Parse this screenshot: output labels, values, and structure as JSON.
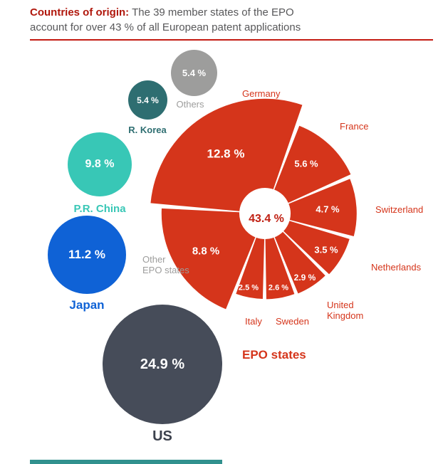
{
  "header": {
    "title_bold": "Countries of origin:",
    "title_text": "The 39 member states of the EPO account for over 43 % of all European patent applications"
  },
  "chart_data": {
    "type": "pie",
    "title": "Countries of origin",
    "subtitle": "The 39 member states of the EPO account for over 43 % of all European patent applications",
    "units": "% of all European patent applications",
    "bubbles": [
      {
        "label": "Others",
        "value": 5.4,
        "display": "5.4 %",
        "color": "#9d9d9c",
        "label_color": "#9d9d9c"
      },
      {
        "label": "R. Korea",
        "value": 5.4,
        "display": "5.4 %",
        "color": "#2e6e71",
        "label_color": "#2e6e71"
      },
      {
        "label": "P.R. China",
        "value": 9.8,
        "display": "9.8 %",
        "color": "#38c7b6",
        "label_color": "#38c7b6"
      },
      {
        "label": "Japan",
        "value": 11.2,
        "display": "11.2 %",
        "color": "#0f62d6",
        "label_color": "#0f62d6"
      },
      {
        "label": "US",
        "value": 24.9,
        "display": "24.9 %",
        "color": "#464c59",
        "label_color": "#3c414d"
      }
    ],
    "donut": {
      "group_label": "EPO states",
      "total_value": 43.4,
      "total_display": "43.4 %",
      "color": "#d5351b",
      "segments": [
        {
          "label": "Germany",
          "value": 12.8,
          "display": "12.8 %"
        },
        {
          "label": "France",
          "value": 5.6,
          "display": "5.6 %"
        },
        {
          "label": "Switzerland",
          "value": 4.7,
          "display": "4.7 %"
        },
        {
          "label": "Netherlands",
          "value": 3.5,
          "display": "3.5 %"
        },
        {
          "label": "United Kingdom",
          "value": 2.9,
          "display": "2.9 %"
        },
        {
          "label": "Sweden",
          "value": 2.6,
          "display": "2.6 %"
        },
        {
          "label": "Italy",
          "value": 2.5,
          "display": "2.5 %"
        },
        {
          "label": "Other EPO states",
          "value": 8.8,
          "display": "8.8 %"
        }
      ]
    }
  },
  "annotations": {
    "germany": "Germany",
    "france": "France",
    "switzerland": "Switzerland",
    "netherlands": "Netherlands",
    "united_kingdom": "United\nKingdom",
    "sweden": "Sweden",
    "italy": "Italy",
    "other_epo": "Other\nEPO states",
    "epo_states": "EPO states"
  },
  "colors": {
    "title_red": "#b0170c",
    "divider_red": "#c41b12",
    "body_gray": "#58585a",
    "label_gray": "#9d9d9c",
    "donut_red": "#d5351b",
    "center_text_red": "#c02013",
    "footer_bar": "#31918e",
    "background": "#ffffff"
  }
}
